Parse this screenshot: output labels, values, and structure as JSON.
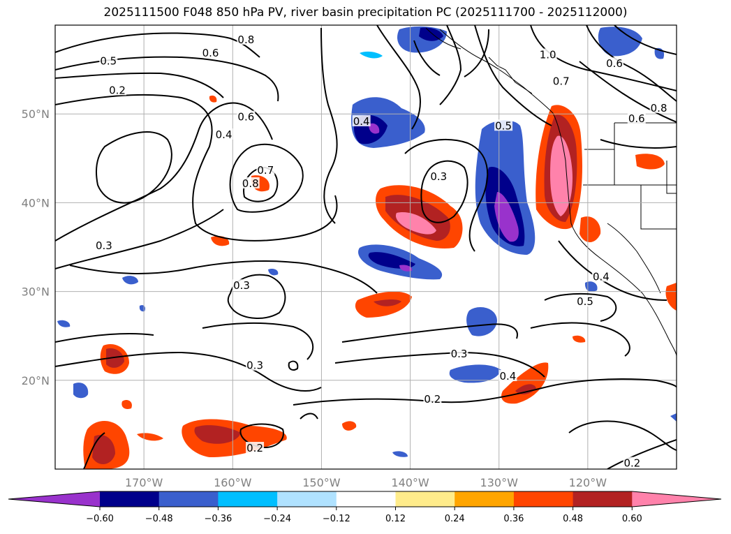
{
  "title": "2025111500 F048 850 hPa PV, river basin precipitation PC (2025111700 - 2025112000)",
  "map": {
    "lon_range": [
      -180,
      -110
    ],
    "lat_range": [
      10,
      60
    ],
    "gridlines": true,
    "lat_ticks": [
      {
        "value": 20,
        "label": "20°N"
      },
      {
        "value": 30,
        "label": "30°N"
      },
      {
        "value": 40,
        "label": "40°N"
      },
      {
        "value": 50,
        "label": "50°N"
      }
    ],
    "lon_ticks": [
      {
        "value": -170,
        "label": "170°W"
      },
      {
        "value": -160,
        "label": "160°W"
      },
      {
        "value": -150,
        "label": "150°W"
      },
      {
        "value": -140,
        "label": "140°W"
      },
      {
        "value": -130,
        "label": "130°W"
      },
      {
        "value": -120,
        "label": "120°W"
      }
    ],
    "contour_labels": [
      {
        "text": "0.5",
        "lon": -174,
        "lat": 55.8
      },
      {
        "text": "0.6",
        "lon": -162.5,
        "lat": 56.7
      },
      {
        "text": "0.2",
        "lon": -173,
        "lat": 52.5
      },
      {
        "text": "0.8",
        "lon": -158.5,
        "lat": 58.2
      },
      {
        "text": "0.4",
        "lon": -161,
        "lat": 47.5
      },
      {
        "text": "0.6",
        "lon": -158.5,
        "lat": 49.5
      },
      {
        "text": "0.7",
        "lon": -156.3,
        "lat": 43.5
      },
      {
        "text": "0.8",
        "lon": -158,
        "lat": 42
      },
      {
        "text": "0.3",
        "lon": -174.5,
        "lat": 35
      },
      {
        "text": "0.3",
        "lon": -159,
        "lat": 30.5
      },
      {
        "text": "0.4",
        "lon": -145.5,
        "lat": 49
      },
      {
        "text": "0.3",
        "lon": -136.8,
        "lat": 42.8
      },
      {
        "text": "0.5",
        "lon": -129.5,
        "lat": 48.5
      },
      {
        "text": "1.0",
        "lon": -124.5,
        "lat": 56.5
      },
      {
        "text": "0.7",
        "lon": -123,
        "lat": 53.5
      },
      {
        "text": "0.6",
        "lon": -117,
        "lat": 55.5
      },
      {
        "text": "0.8",
        "lon": -112,
        "lat": 50.5
      },
      {
        "text": "0.6",
        "lon": -114.5,
        "lat": 49.3
      },
      {
        "text": "0.4",
        "lon": -118.5,
        "lat": 31.5
      },
      {
        "text": "0.5",
        "lon": -120.3,
        "lat": 28.7
      },
      {
        "text": "0.3",
        "lon": -134.5,
        "lat": 22.8
      },
      {
        "text": "0.4",
        "lon": -129,
        "lat": 20.3
      },
      {
        "text": "0.2",
        "lon": -137.5,
        "lat": 17.7
      },
      {
        "text": "0.2",
        "lon": -157.5,
        "lat": 12.2
      },
      {
        "text": "0.2",
        "lon": -115,
        "lat": 10.5
      },
      {
        "text": "0.3",
        "lon": -157.5,
        "lat": 21.5
      }
    ]
  },
  "colorbar": {
    "colors": [
      "#9932cc",
      "#00008b",
      "#3a5fcd",
      "#00bfff",
      "#b0e2ff",
      "#ffffff",
      "#ffec8b",
      "#ffa500",
      "#ff4500",
      "#b22222",
      "#ff82ab"
    ],
    "tick_labels": [
      "−0.60",
      "−0.48",
      "−0.36",
      "−0.24",
      "−0.12",
      "0.12",
      "0.24",
      "0.36",
      "0.48",
      "0.60"
    ]
  }
}
